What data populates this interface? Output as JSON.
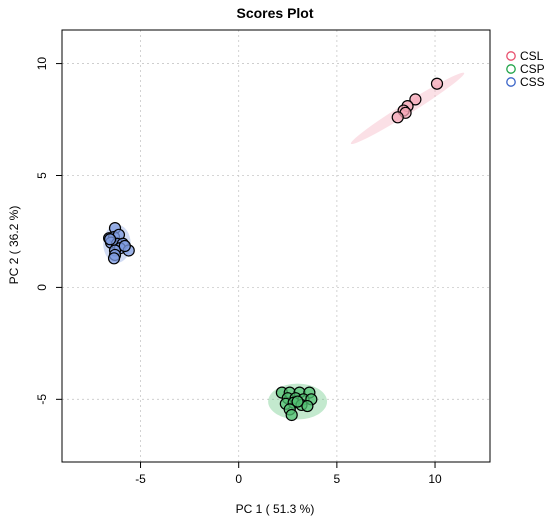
{
  "chart_data": {
    "type": "scatter",
    "title": "Scores Plot",
    "xlabel": "PC 1 ( 51.3 %)",
    "ylabel": "PC 2 ( 36.2 %)",
    "xlim": [
      -9,
      12.8
    ],
    "ylim": [
      -7.8,
      11.5
    ],
    "xticks": [
      -5,
      0,
      5,
      10
    ],
    "yticks": [
      -5,
      0,
      5,
      10
    ],
    "grid": true,
    "legend_position": "top-right-outside",
    "series": [
      {
        "name": "CSL",
        "color": "#e8506e",
        "fill": "#f4a6b6",
        "ellipse": {
          "cx": 8.6,
          "cy": 8.0,
          "rx": 3.4,
          "ry": 0.25,
          "angle_deg": 32
        },
        "points": [
          {
            "x": 10.1,
            "y": 9.1
          },
          {
            "x": 9.0,
            "y": 8.4
          },
          {
            "x": 8.6,
            "y": 8.1
          },
          {
            "x": 8.4,
            "y": 7.9
          },
          {
            "x": 8.5,
            "y": 7.8
          },
          {
            "x": 8.1,
            "y": 7.6
          }
        ]
      },
      {
        "name": "CSP",
        "color": "#1fa347",
        "fill": "#52c072",
        "ellipse": {
          "cx": 3.0,
          "cy": -5.1,
          "rx": 1.5,
          "ry": 0.8,
          "angle_deg": 0
        },
        "points": [
          {
            "x": 2.2,
            "y": -4.7
          },
          {
            "x": 2.6,
            "y": -4.7
          },
          {
            "x": 3.1,
            "y": -4.7
          },
          {
            "x": 3.6,
            "y": -4.7
          },
          {
            "x": 2.5,
            "y": -4.95
          },
          {
            "x": 2.9,
            "y": -4.95
          },
          {
            "x": 3.3,
            "y": -5.0
          },
          {
            "x": 3.7,
            "y": -5.0
          },
          {
            "x": 2.4,
            "y": -5.2
          },
          {
            "x": 2.8,
            "y": -5.15
          },
          {
            "x": 3.2,
            "y": -5.25
          },
          {
            "x": 3.5,
            "y": -5.3
          },
          {
            "x": 2.6,
            "y": -5.45
          },
          {
            "x": 2.7,
            "y": -5.7
          },
          {
            "x": 3.0,
            "y": -5.1
          }
        ]
      },
      {
        "name": "CSS",
        "color": "#3a64c8",
        "fill": "#7e9be0",
        "ellipse": {
          "cx": -6.2,
          "cy": 1.95,
          "rx": 0.7,
          "ry": 0.85,
          "angle_deg": 0
        },
        "points": [
          {
            "x": -6.3,
            "y": 2.65
          },
          {
            "x": -6.6,
            "y": 2.2
          },
          {
            "x": -6.35,
            "y": 2.25
          },
          {
            "x": -6.1,
            "y": 2.35
          },
          {
            "x": -6.5,
            "y": 2.0
          },
          {
            "x": -6.2,
            "y": 1.95
          },
          {
            "x": -5.9,
            "y": 1.95
          },
          {
            "x": -6.05,
            "y": 1.75
          },
          {
            "x": -6.3,
            "y": 1.65
          },
          {
            "x": -5.6,
            "y": 1.65
          },
          {
            "x": -6.3,
            "y": 1.45
          },
          {
            "x": -6.35,
            "y": 1.3
          },
          {
            "x": -6.55,
            "y": 2.15
          },
          {
            "x": -5.8,
            "y": 1.85
          }
        ]
      }
    ]
  }
}
